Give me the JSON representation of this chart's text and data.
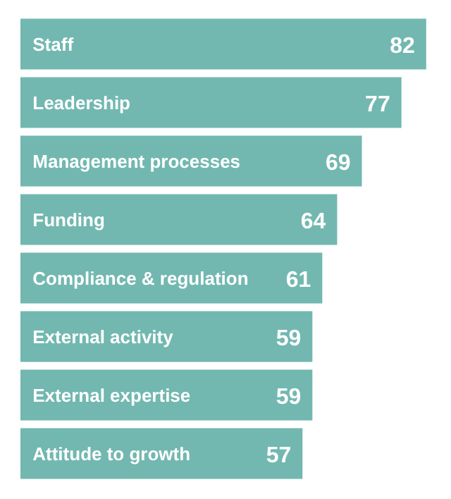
{
  "chart_data": {
    "type": "bar",
    "orientation": "horizontal",
    "data_labels": true,
    "grid": false,
    "tick_labels": false,
    "categories": [
      "Staff",
      "Leadership",
      "Management processes",
      "Funding",
      "Compliance & regulation",
      "External activity",
      "External expertise",
      "Attitude to growth"
    ],
    "values": [
      82,
      77,
      69,
      64,
      61,
      59,
      59,
      57
    ],
    "color": "#72b8b0"
  }
}
